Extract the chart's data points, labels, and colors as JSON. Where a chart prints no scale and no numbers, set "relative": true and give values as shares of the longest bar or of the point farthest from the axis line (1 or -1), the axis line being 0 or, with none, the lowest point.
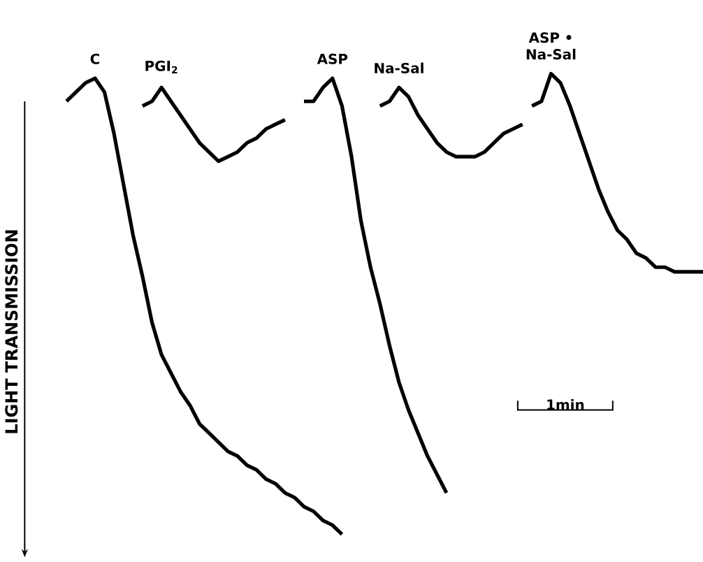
{
  "chart_data": {
    "type": "line",
    "relative": true,
    "ylabel": "LIGHT TRANSMISSION",
    "annotations": [
      "1min"
    ],
    "categories": [
      null,
      null,
      null,
      null,
      null,
      null,
      null,
      null,
      null,
      null,
      null,
      null,
      null,
      null,
      null,
      null,
      null,
      null,
      null,
      null,
      null,
      null,
      null,
      null,
      null,
      null,
      null,
      null,
      null,
      null,
      null,
      null,
      null,
      null,
      null,
      null,
      null,
      null,
      null,
      null,
      null,
      null,
      null,
      null,
      null,
      null,
      null,
      null,
      null,
      null,
      null,
      null,
      null,
      null,
      null,
      null,
      null,
      null,
      null,
      null,
      null,
      null,
      null,
      null,
      null,
      null,
      null,
      null
    ],
    "series": [
      {
        "name": "C",
        "color": "#000000",
        "values": [
          0.94,
          0.96,
          0.98,
          0.99,
          0.96,
          0.87,
          0.76,
          0.65,
          0.56,
          0.46,
          0.39,
          0.35,
          0.31,
          0.28,
          0.24,
          0.22,
          0.2,
          0.18,
          0.17,
          0.15,
          0.14,
          0.12,
          0.11,
          0.09,
          0.08,
          0.06,
          0.05,
          0.03,
          0.02,
          0,
          null,
          null,
          null,
          null,
          null,
          null,
          null,
          null,
          null,
          null,
          null,
          null,
          null,
          null,
          null,
          null,
          null,
          null,
          null,
          null,
          null,
          null,
          null,
          null,
          null,
          null,
          null,
          null,
          null,
          null,
          null,
          null,
          null,
          null,
          null,
          null,
          null,
          null
        ]
      },
      {
        "name": "PGI$_{2}$",
        "color": "#000000",
        "values": [
          null,
          null,
          null,
          null,
          null,
          null,
          null,
          null,
          0.93,
          0.94,
          0.97,
          0.94,
          0.91,
          0.88,
          0.85,
          0.83,
          0.81,
          0.82,
          0.83,
          0.85,
          0.86,
          0.88,
          0.89,
          0.9,
          null,
          null,
          null,
          null,
          null,
          null,
          null,
          null,
          null,
          null,
          null,
          null,
          null,
          null,
          null,
          null,
          null,
          null,
          null,
          null,
          null,
          null,
          null,
          null,
          null,
          null,
          null,
          null,
          null,
          null,
          null,
          null,
          null,
          null,
          null,
          null,
          null,
          null,
          null,
          null,
          null,
          null,
          null,
          null
        ]
      },
      {
        "name": "ASP",
        "color": "#000000",
        "values": [
          null,
          null,
          null,
          null,
          null,
          null,
          null,
          null,
          null,
          null,
          null,
          null,
          null,
          null,
          null,
          null,
          null,
          null,
          null,
          null,
          null,
          null,
          null,
          null,
          null,
          0.94,
          0.94,
          0.97,
          0.99,
          0.93,
          0.82,
          0.68,
          0.58,
          0.5,
          0.41,
          0.33,
          0.27,
          0.22,
          0.17,
          0.13,
          0.09,
          null,
          null,
          null,
          null,
          null,
          null,
          null,
          null,
          null,
          null,
          null,
          null,
          null,
          null,
          null,
          null,
          null,
          null,
          null,
          null,
          null,
          null,
          null,
          null,
          null,
          null,
          null
        ]
      },
      {
        "name": "Na-Sal",
        "color": "#000000",
        "values": [
          null,
          null,
          null,
          null,
          null,
          null,
          null,
          null,
          null,
          null,
          null,
          null,
          null,
          null,
          null,
          null,
          null,
          null,
          null,
          null,
          null,
          null,
          null,
          null,
          null,
          null,
          null,
          null,
          null,
          null,
          null,
          null,
          null,
          0.93,
          0.94,
          0.97,
          0.95,
          0.91,
          0.88,
          0.85,
          0.83,
          0.82,
          0.82,
          0.82,
          0.83,
          0.85,
          0.87,
          0.88,
          0.89,
          null,
          null,
          null,
          null,
          null,
          null,
          null,
          null,
          null,
          null,
          null,
          null,
          null,
          null,
          null,
          null,
          null,
          null,
          null
        ]
      },
      {
        "name": "ASP • Na-Sal",
        "color": "#000000",
        "values": [
          null,
          null,
          null,
          null,
          null,
          null,
          null,
          null,
          null,
          null,
          null,
          null,
          null,
          null,
          null,
          null,
          null,
          null,
          null,
          null,
          null,
          null,
          null,
          null,
          null,
          null,
          null,
          null,
          null,
          null,
          null,
          null,
          null,
          null,
          null,
          null,
          null,
          null,
          null,
          null,
          null,
          null,
          null,
          null,
          null,
          null,
          null,
          null,
          null,
          0.93,
          0.94,
          1.0,
          0.98,
          0.93,
          0.87,
          0.81,
          0.75,
          0.7,
          0.66,
          0.64,
          0.61,
          0.6,
          0.58,
          0.58,
          0.57,
          0.57,
          0.57,
          0.57
        ]
      }
    ]
  }
}
